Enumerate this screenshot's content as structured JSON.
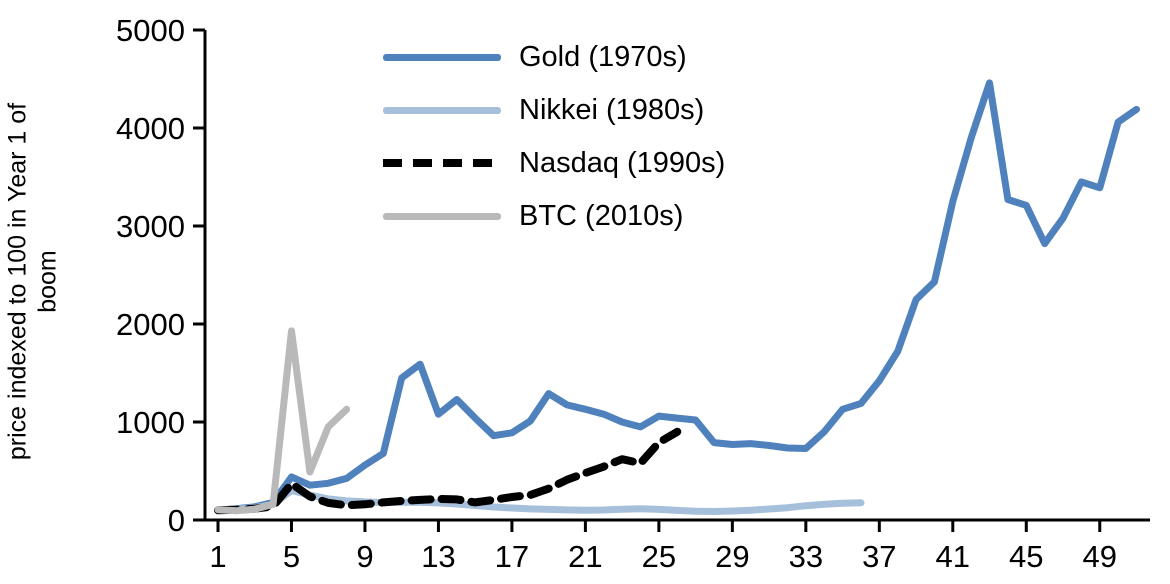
{
  "chart_data": {
    "type": "line",
    "title": "",
    "ylabel": "price indexed to 100 in Year 1 of boom",
    "ylabel_lines": [
      "price indexed to 100 in Year 1 of",
      "boom"
    ],
    "xlabel": "",
    "ylim": [
      0,
      5000
    ],
    "yticks": [
      0,
      1000,
      2000,
      3000,
      4000,
      5000
    ],
    "xticks": [
      1,
      5,
      9,
      13,
      17,
      21,
      25,
      29,
      33,
      37,
      41,
      45,
      49
    ],
    "x_start": 1,
    "x_step": 1,
    "grid": false,
    "legend_position": "upper-left-inside",
    "axis_color": "#000000",
    "series": [
      {
        "id": "gold",
        "name": "Gold (1970s)",
        "color": "#4f81bd",
        "width": 7,
        "dash": null,
        "values": [
          100,
          115,
          135,
          180,
          440,
          355,
          375,
          425,
          560,
          680,
          1450,
          1590,
          1080,
          1230,
          1040,
          860,
          890,
          1010,
          1290,
          1175,
          1130,
          1080,
          1000,
          950,
          1060,
          1040,
          1020,
          790,
          770,
          780,
          760,
          735,
          730,
          900,
          1130,
          1190,
          1420,
          1720,
          2250,
          2430,
          3250,
          3900,
          4460,
          3270,
          3210,
          2820,
          3080,
          3450,
          3390,
          4060,
          4190
        ]
      },
      {
        "id": "nikkei",
        "name": "Nikkei (1980s)",
        "color": "#a6c0dc",
        "width": 7,
        "dash": null,
        "values": [
          100,
          108,
          125,
          160,
          300,
          255,
          215,
          195,
          185,
          178,
          183,
          180,
          175,
          163,
          148,
          133,
          122,
          113,
          108,
          103,
          100,
          102,
          110,
          114,
          108,
          98,
          90,
          87,
          92,
          100,
          112,
          126,
          146,
          160,
          170,
          176
        ]
      },
      {
        "id": "nasdaq",
        "name": "Nasdaq (1990s)",
        "color": "#000000",
        "width": 8,
        "dash": "19 11",
        "values": [
          100,
          105,
          115,
          140,
          370,
          240,
          175,
          150,
          160,
          180,
          195,
          205,
          215,
          210,
          180,
          205,
          235,
          255,
          320,
          410,
          480,
          545,
          620,
          580,
          790,
          900
        ]
      },
      {
        "id": "btc",
        "name": "BTC (2010s)",
        "color": "#b9b9b9",
        "width": 7,
        "dash": null,
        "values": [
          105,
          95,
          110,
          160,
          1930,
          490,
          950,
          1130
        ]
      }
    ]
  }
}
